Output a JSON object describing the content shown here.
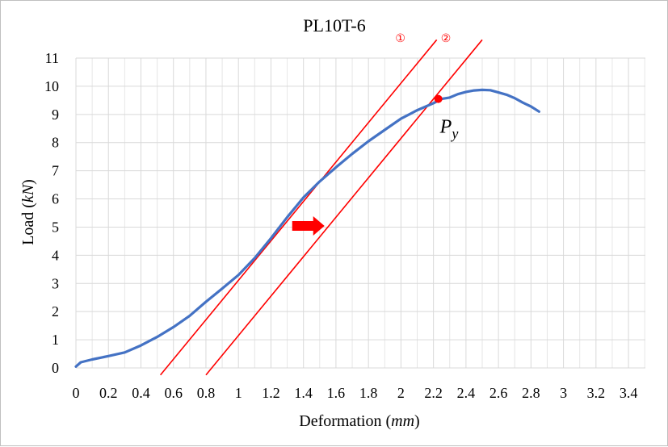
{
  "chart_data": {
    "type": "line",
    "title": "PL10T-6",
    "xlabel_main": "Deformation",
    "xlabel_unit": "mm",
    "ylabel_main": "Load",
    "ylabel_unit": "kN",
    "xlim": [
      0,
      3.5
    ],
    "ylim": [
      0,
      11
    ],
    "x_ticks": [
      "0",
      "0.2",
      "0.4",
      "0.6",
      "0.8",
      "1",
      "1.2",
      "1.4",
      "1.6",
      "1.8",
      "2",
      "2.2",
      "2.4",
      "2.6",
      "2.8",
      "3",
      "3.2",
      "3.4"
    ],
    "y_ticks": [
      "0",
      "1",
      "2",
      "3",
      "4",
      "5",
      "6",
      "7",
      "8",
      "9",
      "10",
      "11"
    ],
    "grid": true,
    "series": [
      {
        "color": "#4472c4",
        "points": [
          [
            0,
            0.05
          ],
          [
            0.03,
            0.2
          ],
          [
            0.1,
            0.3
          ],
          [
            0.2,
            0.42
          ],
          [
            0.3,
            0.55
          ],
          [
            0.4,
            0.8
          ],
          [
            0.5,
            1.1
          ],
          [
            0.6,
            1.45
          ],
          [
            0.7,
            1.85
          ],
          [
            0.8,
            2.35
          ],
          [
            0.9,
            2.82
          ],
          [
            1.0,
            3.3
          ],
          [
            1.1,
            3.9
          ],
          [
            1.2,
            4.6
          ],
          [
            1.3,
            5.35
          ],
          [
            1.4,
            6.05
          ],
          [
            1.5,
            6.62
          ],
          [
            1.6,
            7.12
          ],
          [
            1.7,
            7.6
          ],
          [
            1.8,
            8.05
          ],
          [
            1.9,
            8.45
          ],
          [
            2.0,
            8.85
          ],
          [
            2.1,
            9.15
          ],
          [
            2.2,
            9.4
          ],
          [
            2.25,
            9.55
          ],
          [
            2.3,
            9.6
          ],
          [
            2.35,
            9.72
          ],
          [
            2.4,
            9.8
          ],
          [
            2.45,
            9.85
          ],
          [
            2.5,
            9.87
          ],
          [
            2.55,
            9.86
          ],
          [
            2.6,
            9.78
          ],
          [
            2.65,
            9.7
          ],
          [
            2.7,
            9.58
          ],
          [
            2.75,
            9.42
          ],
          [
            2.8,
            9.28
          ],
          [
            2.85,
            9.1
          ]
        ]
      }
    ],
    "reference_lines": [
      {
        "label": "①",
        "color": "#ff0000",
        "from": [
          0.52,
          -0.25
        ],
        "to": [
          2.22,
          11.65
        ]
      },
      {
        "label": "②",
        "color": "#ff0000",
        "from": [
          0.8,
          -0.25
        ],
        "to": [
          2.5,
          11.65
        ]
      }
    ],
    "yield_point": {
      "label_main": "P",
      "label_sub": "y",
      "x": 2.23,
      "y": 9.55,
      "color": "#ff0000"
    },
    "arrow": {
      "color": "#ff0000",
      "direction": "right",
      "x": 1.45,
      "y": 5.1
    }
  }
}
